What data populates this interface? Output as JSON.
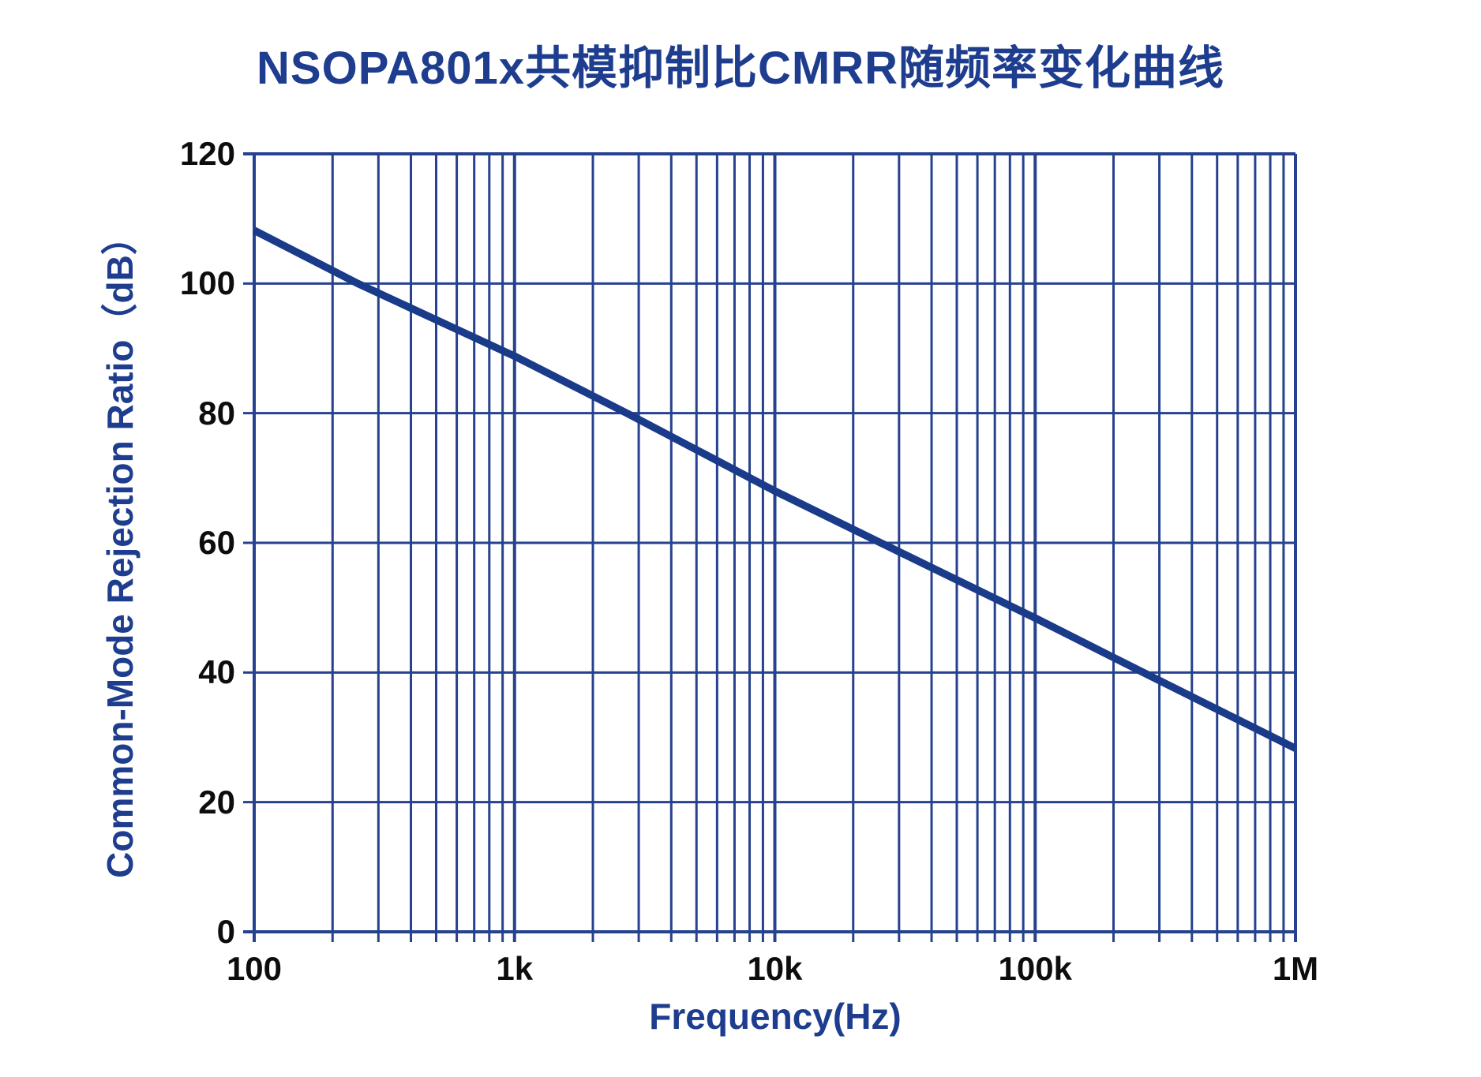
{
  "title": {
    "text": "NSOPA801x共模抑制比CMRR随频率变化曲线"
  },
  "chart_data": {
    "type": "line",
    "title": "NSOPA801x共模抑制比CMRR随频率变化曲线",
    "xlabel": "Frequency(Hz)",
    "ylabel": "Common-Mode Rejection Ratio（dB）",
    "x_scale": "log",
    "xlim": [
      100,
      1000000
    ],
    "ylim": [
      0,
      120
    ],
    "y_tick_step": 20,
    "grid": "log-x major+minor verticals, 20dB major horizontals, tick stubs outside axes",
    "legend": "none",
    "x_ticks": [
      {
        "label": "100",
        "value": 100
      },
      {
        "label": "1k",
        "value": 1000
      },
      {
        "label": "10k",
        "value": 10000
      },
      {
        "label": "100k",
        "value": 100000
      },
      {
        "label": "1M",
        "value": 1000000
      }
    ],
    "y_ticks": [
      {
        "label": "120",
        "value": 120
      },
      {
        "label": "100",
        "value": 100
      },
      {
        "label": "80",
        "value": 80
      },
      {
        "label": "60",
        "value": 60
      },
      {
        "label": "40",
        "value": 40
      },
      {
        "label": "20",
        "value": 20
      },
      {
        "label": "0",
        "value": 0
      }
    ],
    "series": [
      {
        "name": "CMRR",
        "slope_note": "-20 dB per decade",
        "points": [
          [
            100,
            108.2
          ],
          [
            250,
            100
          ],
          [
            1000,
            88.8
          ],
          [
            2700,
            80
          ],
          [
            10000,
            68
          ],
          [
            25500,
            60
          ],
          [
            100000,
            48.4
          ],
          [
            260000,
            40
          ],
          [
            1000000,
            28.3
          ]
        ]
      }
    ],
    "colors": {
      "grid": "#26418E",
      "curve": "#1A3A8A",
      "axis_text_blue": "#1E3D8F",
      "tick_text_black": "#0D0D0D",
      "background": "#FFFFFF"
    }
  }
}
